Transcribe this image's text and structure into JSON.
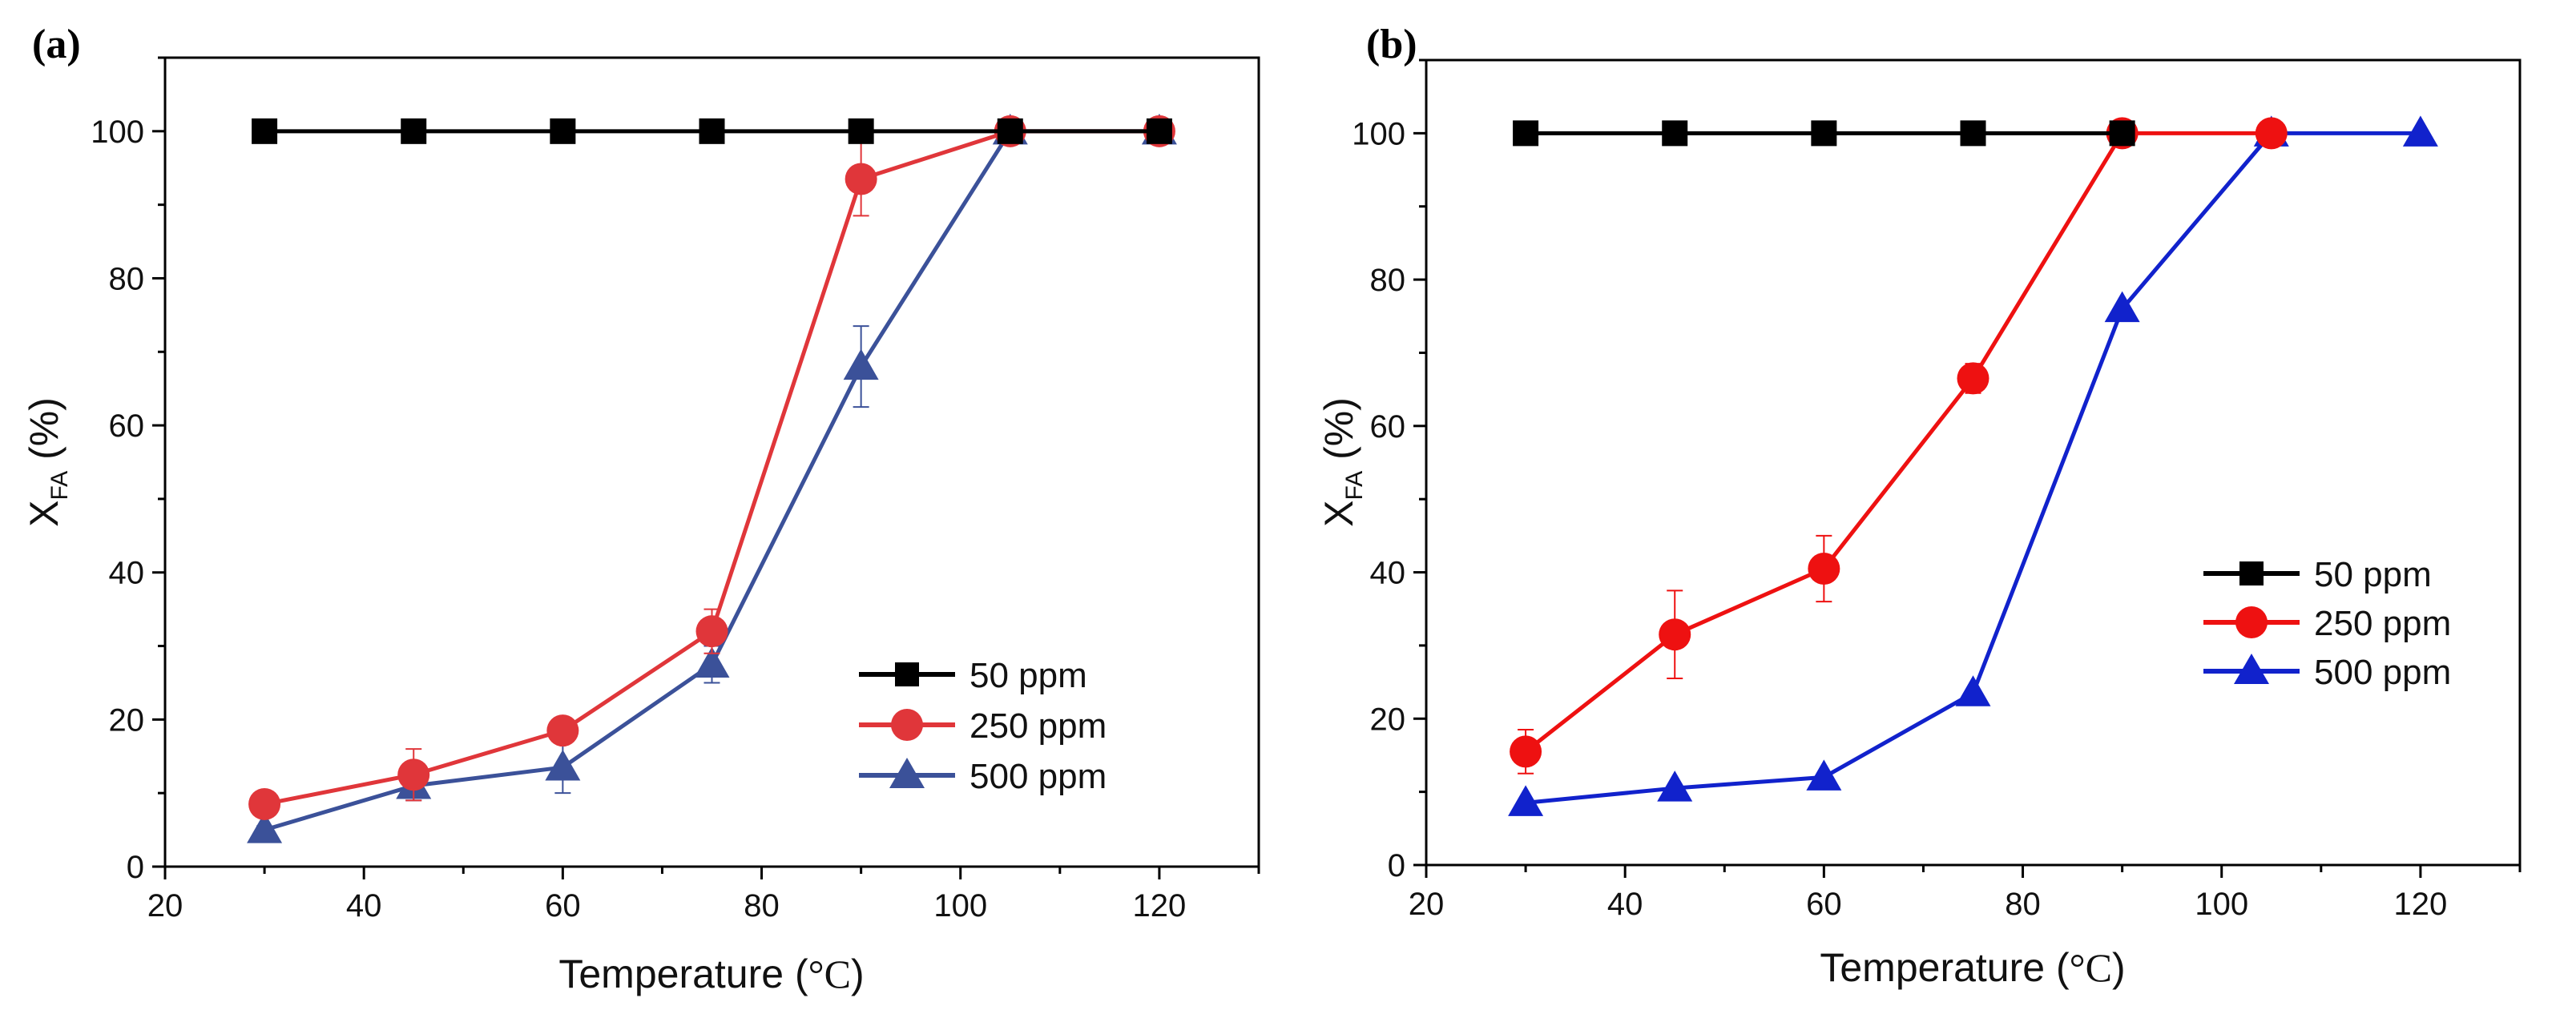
{
  "chart_data": [
    {
      "type": "line",
      "panel_label": "(a)",
      "xlabel": "Temperature (",
      "xlabel_unit": "°C",
      "xlabel_close": ")",
      "ylabel_main": "X",
      "ylabel_sub": "FA",
      "ylabel_tail": " (%)",
      "xlim": [
        20,
        130
      ],
      "ylim": [
        0,
        110
      ],
      "xticks": [
        20,
        40,
        60,
        80,
        100,
        120
      ],
      "yticks": [
        0,
        20,
        40,
        60,
        80,
        100
      ],
      "legend_position": "lower-right",
      "grid": false,
      "series": [
        {
          "name": "50 ppm",
          "color": "#000000",
          "marker": "square",
          "x": [
            30,
            45,
            60,
            75,
            90,
            105,
            120
          ],
          "y": [
            100,
            100,
            100,
            100,
            100,
            100,
            100
          ],
          "err": [
            0,
            0,
            0,
            0,
            0,
            0,
            0
          ]
        },
        {
          "name": "250 ppm",
          "color": "#e0363a",
          "marker": "circle",
          "x": [
            30,
            45,
            60,
            75,
            90,
            105,
            120
          ],
          "y": [
            8.5,
            12.5,
            18.5,
            32,
            93.5,
            100,
            100
          ],
          "err": [
            1,
            3.5,
            1,
            3,
            5,
            0.5,
            1.5
          ]
        },
        {
          "name": "500 ppm",
          "color": "#3b5199",
          "marker": "triangle",
          "x": [
            30,
            45,
            60,
            75,
            90,
            105,
            120
          ],
          "y": [
            5,
            11,
            13.5,
            27.5,
            68,
            100,
            100
          ],
          "err": [
            0.5,
            2,
            3.5,
            2.5,
            5.5,
            0.5,
            0.5
          ]
        }
      ]
    },
    {
      "type": "line",
      "panel_label": "(b)",
      "xlabel": "Temperature (",
      "xlabel_unit": "°C",
      "xlabel_close": ")",
      "ylabel_main": "X",
      "ylabel_sub": "FA",
      "ylabel_tail": " (%)",
      "xlim": [
        20,
        130
      ],
      "ylim": [
        0,
        110
      ],
      "xticks": [
        20,
        40,
        60,
        80,
        100,
        120
      ],
      "yticks": [
        0,
        20,
        40,
        60,
        80,
        100
      ],
      "legend_position": "center-right",
      "grid": false,
      "series": [
        {
          "name": "50 ppm",
          "color": "#000000",
          "marker": "square",
          "x": [
            30,
            45,
            60,
            75,
            90
          ],
          "y": [
            100,
            100,
            100,
            100,
            100
          ],
          "err": [
            0,
            0,
            0,
            0,
            0
          ]
        },
        {
          "name": "250 ppm",
          "color": "#ee1111",
          "marker": "circle",
          "x": [
            30,
            45,
            60,
            75,
            90,
            105
          ],
          "y": [
            15.5,
            31.5,
            40.5,
            66.5,
            100,
            100
          ],
          "err": [
            3,
            6,
            4.5,
            2,
            0,
            0
          ]
        },
        {
          "name": "500 ppm",
          "color": "#1122cc",
          "marker": "triangle",
          "x": [
            30,
            45,
            60,
            75,
            90,
            105,
            120
          ],
          "y": [
            8.5,
            10.5,
            12,
            23.5,
            76,
            100,
            100
          ],
          "err": [
            0,
            0,
            0,
            0,
            0,
            0,
            0
          ]
        }
      ]
    }
  ]
}
